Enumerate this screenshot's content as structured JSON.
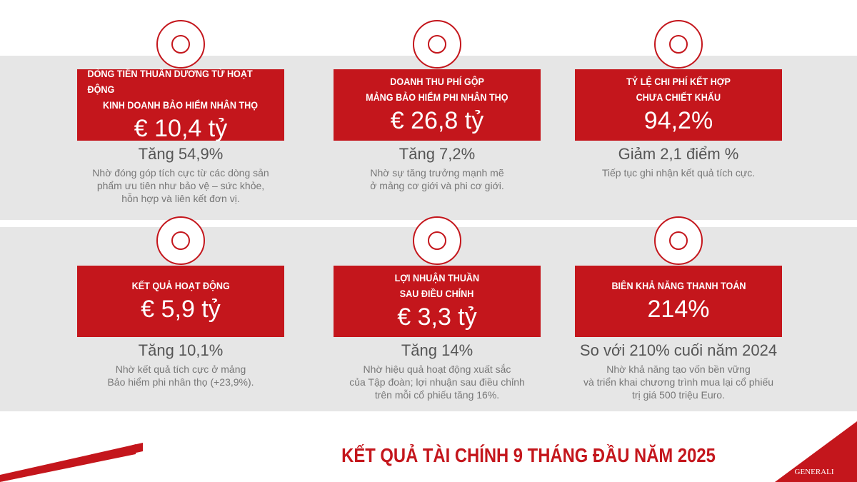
{
  "cards": [
    {
      "heading": [
        "DÒNG TIỀN THUẦN DƯƠNG TỪ HOẠT ĐỘNG",
        "KINH DOANH BẢO HIỂM NHÂN THỌ"
      ],
      "value": "€ 10,4 tỷ",
      "change": "Tăng 54,9%",
      "note": [
        "Nhờ đóng góp tích cực từ các dòng sản",
        "phẩm ưu tiên như bảo vệ – sức khỏe,",
        "hỗn hợp và liên kết đơn vị."
      ]
    },
    {
      "heading": [
        "DOANH THU PHÍ GỘP",
        "MẢNG BẢO HIỂM PHI NHÂN THỌ"
      ],
      "value": "€ 26,8 tỷ",
      "change": "Tăng 7,2%",
      "note": [
        "Nhờ sự tăng trưởng mạnh mẽ",
        "ở mảng cơ giới và phi cơ giới."
      ]
    },
    {
      "heading": [
        "TỶ LỆ CHI PHÍ KẾT HỢP",
        "CHƯA CHIẾT KHẤU"
      ],
      "value": "94,2%",
      "change": "Giảm 2,1 điểm %",
      "note": [
        "Tiếp tục ghi nhận kết quả tích cực."
      ]
    },
    {
      "heading": [
        "KẾT QUẢ HOẠT ĐỘNG"
      ],
      "value": "€ 5,9 tỷ",
      "change": "Tăng 10,1%",
      "note": [
        "Nhờ kết quả tích cực ở mảng",
        "Bảo hiểm phi nhân thọ (+23,9%)."
      ]
    },
    {
      "heading": [
        "LỢI NHUẬN THUẦN",
        "SAU ĐIỀU CHỈNH"
      ],
      "value": "€ 3,3 tỷ",
      "change": "Tăng 14%",
      "note": [
        "Nhờ hiệu quả hoạt động xuất sắc",
        "của Tập đoàn; lợi nhuận sau điều chỉnh",
        "trên mỗi cổ phiếu tăng 16%."
      ]
    },
    {
      "heading": [
        "BIÊN KHẢ NĂNG THANH TOÁN"
      ],
      "value": "214%",
      "change": "So với 210% cuối năm 2024",
      "note": [
        "Nhờ khả năng tạo vốn bền vững",
        "và triển khai chương trình mua lại cổ phiếu",
        "trị giá 500 triệu Euro."
      ]
    }
  ],
  "footer": {
    "title": "KẾT QUẢ TÀI CHÍNH 9 THÁNG ĐẦU NĂM 2025",
    "logo": "GENERALI"
  }
}
